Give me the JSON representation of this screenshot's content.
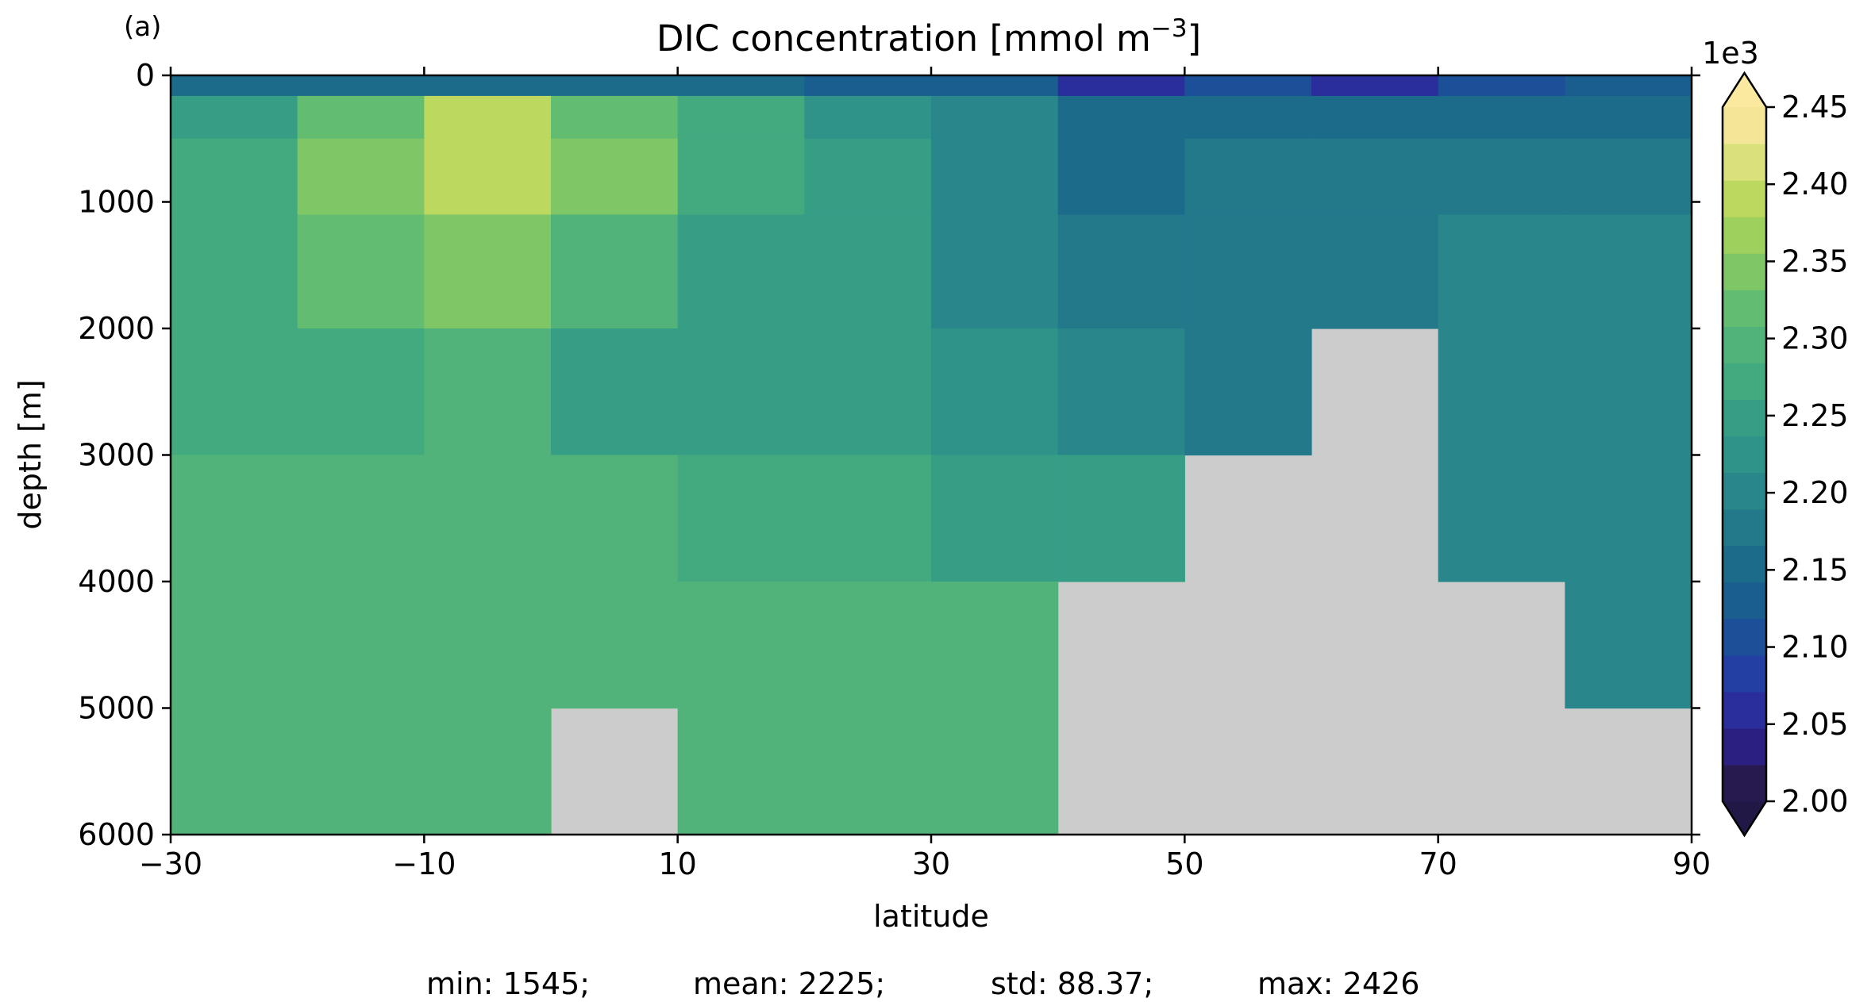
{
  "panel_label": "(a)",
  "chart_data": {
    "type": "heatmap",
    "title": "DIC concentration [mmol m",
    "title_exponent": "−3",
    "title_suffix": "]",
    "xlabel": "latitude",
    "ylabel": "depth [m]",
    "xlim": [
      -30,
      90
    ],
    "ylim": [
      6000,
      0
    ],
    "x_ticks": [
      -30,
      -10,
      10,
      30,
      50,
      70,
      90
    ],
    "x_tick_labels": [
      "−30",
      "−10",
      "10",
      "30",
      "50",
      "70",
      "90"
    ],
    "y_ticks": [
      0,
      1000,
      2000,
      3000,
      4000,
      5000,
      6000
    ],
    "y_tick_labels": [
      "0",
      "1000",
      "2000",
      "3000",
      "4000",
      "5000",
      "6000"
    ],
    "colorbar": {
      "offset_label": "1e3",
      "levels": [
        2.0,
        2.025,
        2.05,
        2.075,
        2.1,
        2.125,
        2.15,
        2.175,
        2.2,
        2.225,
        2.25,
        2.275,
        2.3,
        2.325,
        2.35,
        2.375,
        2.4,
        2.425,
        2.45
      ],
      "tick_values": [
        2.0,
        2.05,
        2.1,
        2.15,
        2.2,
        2.25,
        2.3,
        2.35,
        2.4,
        2.45
      ],
      "tick_labels": [
        "2.00",
        "2.05",
        "2.10",
        "2.15",
        "2.20",
        "2.25",
        "2.30",
        "2.35",
        "2.40",
        "2.45"
      ],
      "colors": [
        "#271a4e",
        "#2b1f82",
        "#2a2d9c",
        "#233fa3",
        "#1b4f98",
        "#1a5e8f",
        "#1d6b8a",
        "#23798a",
        "#29878b",
        "#2f938a",
        "#379e86",
        "#43aa80",
        "#52b37a",
        "#62bd71",
        "#7fc766",
        "#9ed05e",
        "#bcd85e",
        "#dae07a",
        "#f3e696"
      ],
      "extend": "both",
      "under_color": "#221845",
      "over_color": "#fbe9a0"
    },
    "land_color": "#cccccc",
    "values_mmol_m3": {
      "column_latitudes": [
        -25,
        -15,
        -5,
        5,
        15,
        25,
        35,
        45,
        55,
        65,
        75,
        85
      ],
      "rows": [
        {
          "depth": 25,
          "values": [
            2150,
            2160,
            2170,
            2160,
            2150,
            2140,
            2140,
            2050,
            2120,
            2060,
            2110,
            2130
          ]
        },
        {
          "depth": 300,
          "values": [
            2250,
            2330,
            2400,
            2340,
            2280,
            2230,
            2210,
            2150,
            2170,
            2170,
            2170,
            2170
          ]
        },
        {
          "depth": 700,
          "values": [
            2290,
            2360,
            2410,
            2360,
            2290,
            2250,
            2210,
            2170,
            2180,
            2180,
            2180,
            2180
          ]
        },
        {
          "depth": 1500,
          "values": [
            2290,
            2330,
            2360,
            2300,
            2270,
            2250,
            2220,
            2190,
            2190,
            2190,
            2200,
            2200
          ]
        },
        {
          "depth": 2500,
          "values": [
            2280,
            2290,
            2300,
            2270,
            2260,
            2250,
            2230,
            2200,
            2190,
            null,
            2200,
            2210
          ]
        },
        {
          "depth": 3500,
          "values": [
            2300,
            2300,
            2300,
            2300,
            2280,
            2280,
            2270,
            2250,
            null,
            null,
            2210,
            2210
          ]
        },
        {
          "depth": 4500,
          "values": [
            2300,
            2300,
            2300,
            2300,
            2300,
            2300,
            2300,
            null,
            null,
            null,
            null,
            2210
          ]
        },
        {
          "depth": 5500,
          "values": [
            2300,
            2300,
            2300,
            null,
            2300,
            2300,
            2300,
            null,
            null,
            null,
            null,
            null
          ]
        }
      ]
    },
    "stats": {
      "min": "min: 1545;",
      "mean": "mean: 2225;",
      "std": "std: 88.37;",
      "max": "max: 2426"
    }
  }
}
